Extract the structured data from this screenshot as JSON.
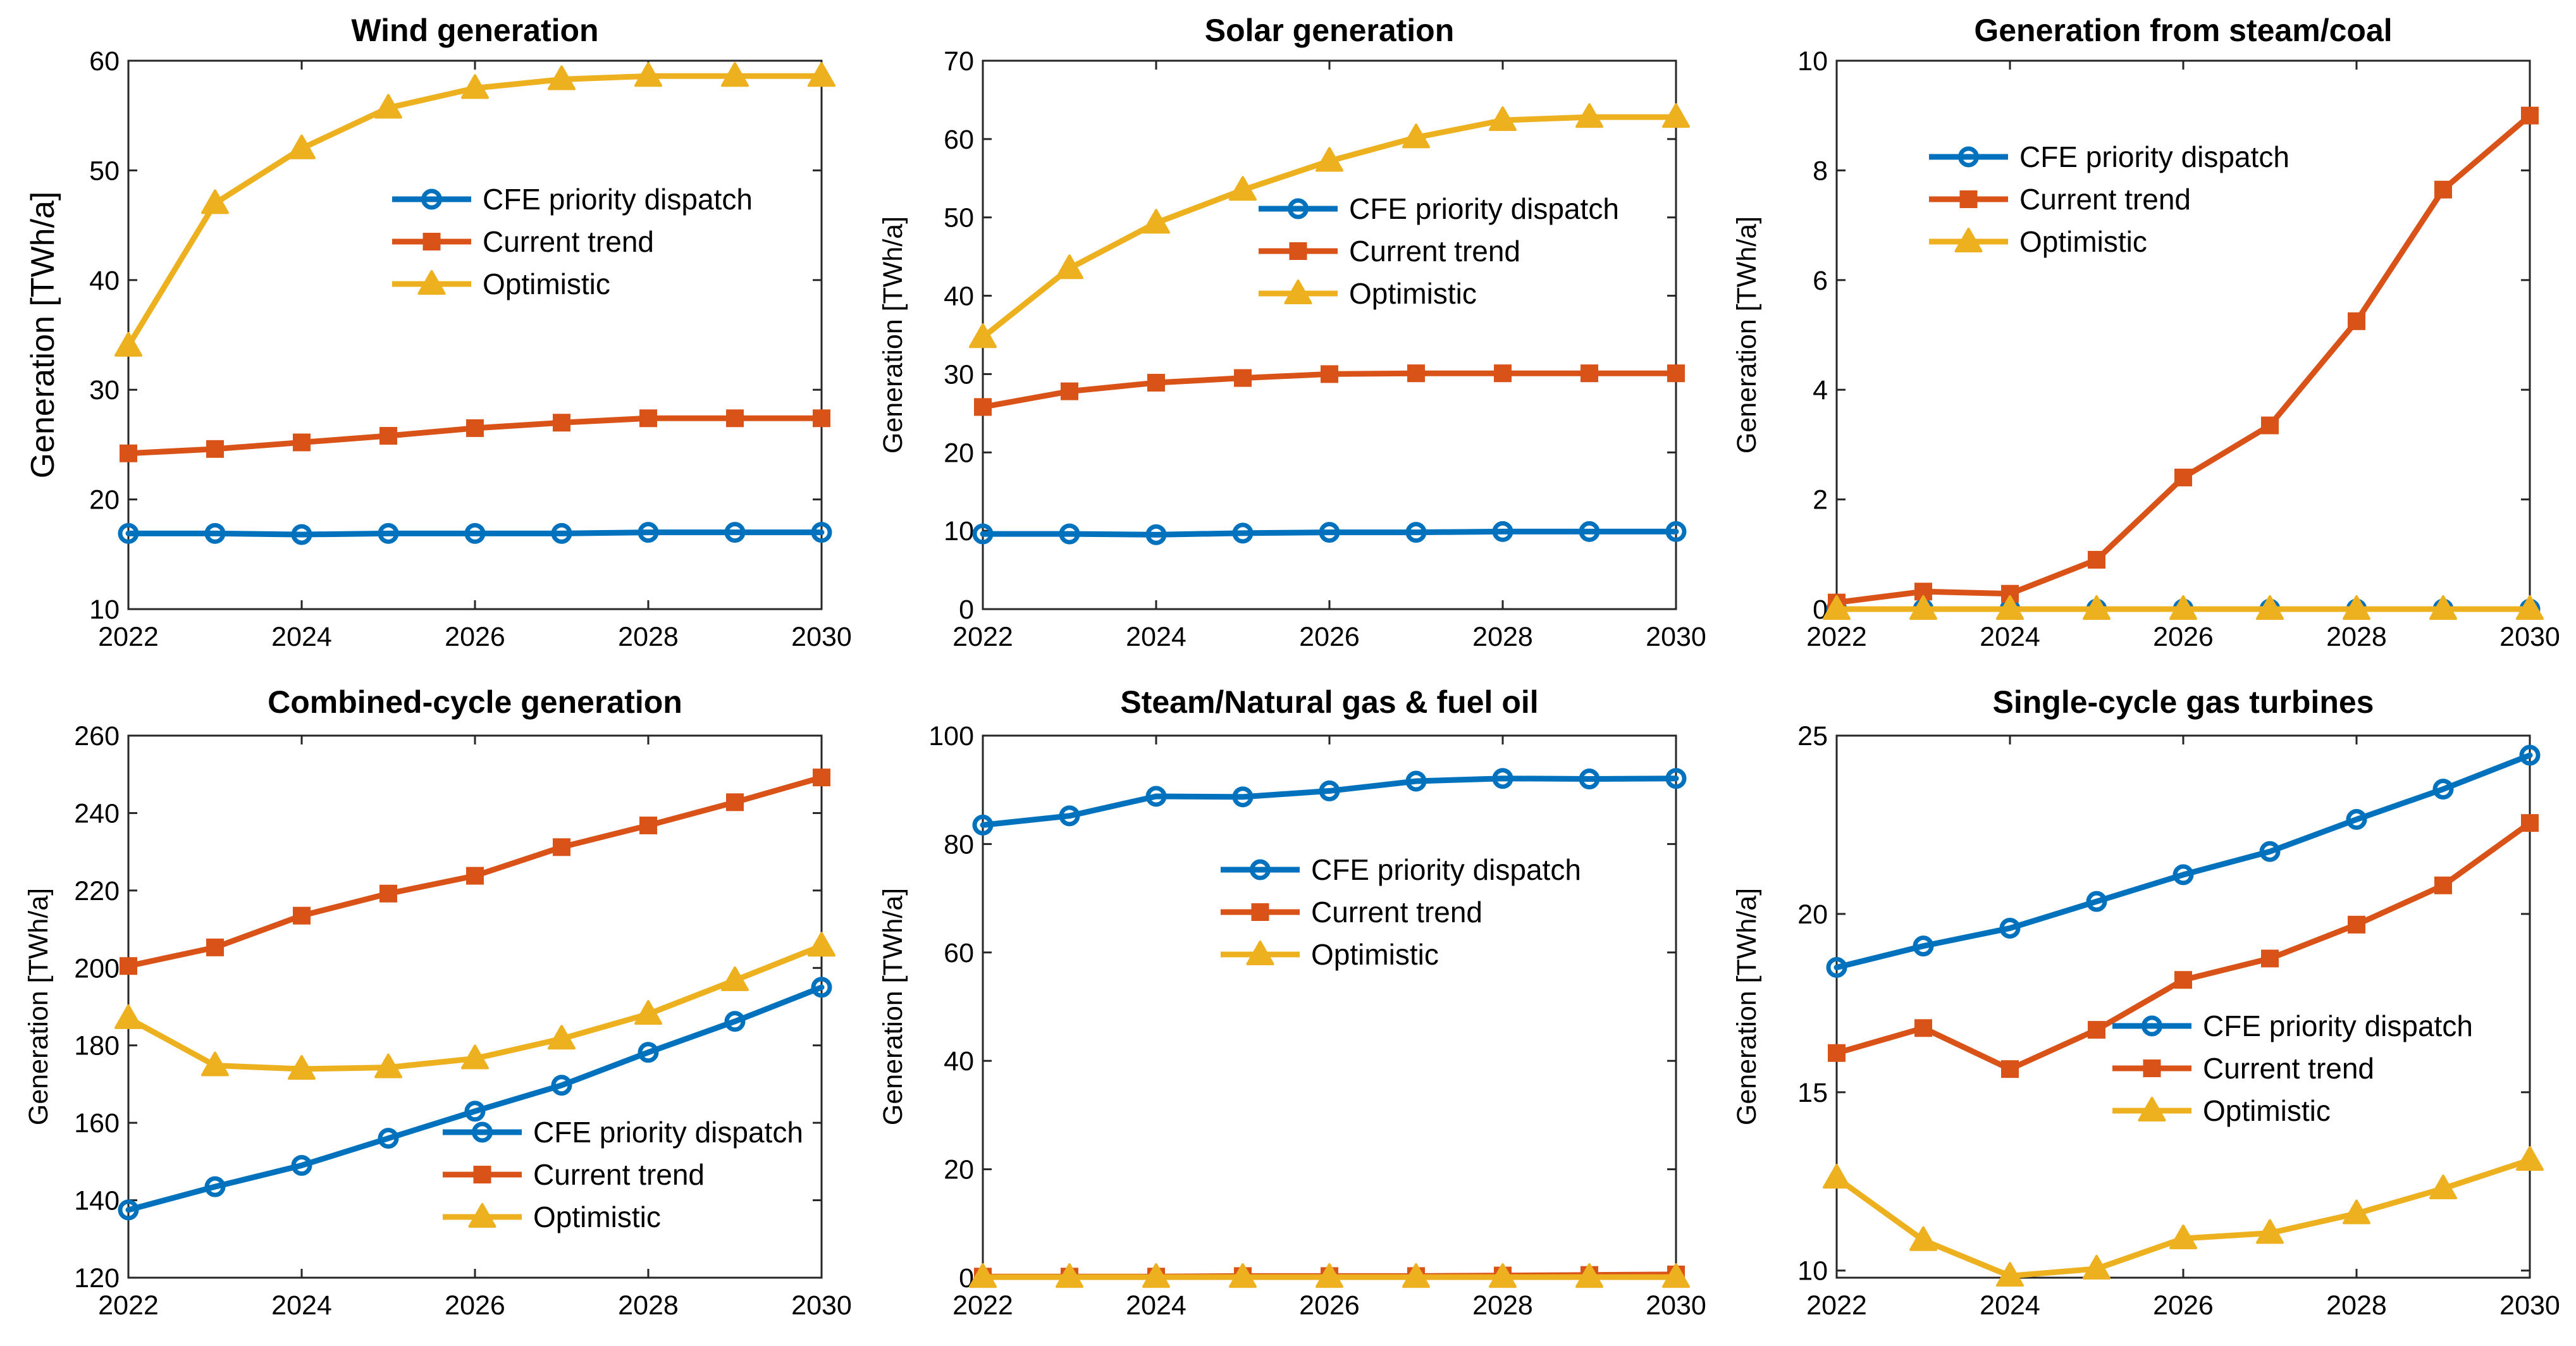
{
  "colors": {
    "cfe": "#0072BD",
    "current": "#D95319",
    "optimistic": "#EDB120"
  },
  "chart_data": [
    {
      "type": "line",
      "title": "Wind generation",
      "xlabel": "",
      "ylabel": "Generation [TWh/a]",
      "x": [
        2022,
        2023,
        2024,
        2025,
        2026,
        2027,
        2028,
        2029,
        2030
      ],
      "xlim": [
        2022,
        2030
      ],
      "xticks": [
        "2022",
        "2024",
        "2026",
        "2028",
        "2030"
      ],
      "ylim": [
        10,
        60
      ],
      "yticks": [
        "10",
        "20",
        "30",
        "40",
        "50",
        "60"
      ],
      "legend_position": "middle-right",
      "series": [
        {
          "name": "CFE priority dispatch",
          "marker": "circle",
          "values": [
            16.9,
            16.9,
            16.8,
            16.9,
            16.9,
            16.9,
            17.0,
            17.0,
            17.0
          ]
        },
        {
          "name": "Current trend",
          "marker": "square",
          "values": [
            24.2,
            24.6,
            25.2,
            25.8,
            26.5,
            27.0,
            27.4,
            27.4,
            27.4
          ]
        },
        {
          "name": "Optimistic",
          "marker": "triangle",
          "values": [
            34.0,
            47.0,
            52.0,
            55.7,
            57.5,
            58.3,
            58.6,
            58.6,
            58.6
          ]
        }
      ]
    },
    {
      "type": "line",
      "title": "Solar generation",
      "xlabel": "",
      "ylabel": "Generation [TWh/a]",
      "x": [
        2022,
        2023,
        2024,
        2025,
        2026,
        2027,
        2028,
        2029,
        2030
      ],
      "xlim": [
        2022,
        2030
      ],
      "xticks": [
        "2022",
        "2024",
        "2026",
        "2028",
        "2030"
      ],
      "ylim": [
        0,
        70
      ],
      "yticks": [
        "0",
        "10",
        "20",
        "30",
        "40",
        "50",
        "60",
        "70"
      ],
      "legend_position": "middle-right",
      "series": [
        {
          "name": "CFE priority dispatch",
          "marker": "circle",
          "values": [
            9.6,
            9.6,
            9.5,
            9.7,
            9.8,
            9.8,
            9.9,
            9.9,
            9.9
          ]
        },
        {
          "name": "Current trend",
          "marker": "square",
          "values": [
            25.8,
            27.8,
            28.9,
            29.5,
            30.0,
            30.1,
            30.1,
            30.1,
            30.1
          ]
        },
        {
          "name": "Optimistic",
          "marker": "triangle",
          "values": [
            34.7,
            43.5,
            49.3,
            53.5,
            57.2,
            60.2,
            62.4,
            62.8,
            62.8
          ]
        }
      ]
    },
    {
      "type": "line",
      "title": "Generation from steam/coal",
      "xlabel": "",
      "ylabel": "Generation [TWh/a]",
      "x": [
        2022,
        2023,
        2024,
        2025,
        2026,
        2027,
        2028,
        2029,
        2030
      ],
      "xlim": [
        2022,
        2030
      ],
      "xticks": [
        "2022",
        "2024",
        "2026",
        "2028",
        "2030"
      ],
      "ylim": [
        0,
        10
      ],
      "yticks": [
        "0",
        "2",
        "4",
        "6",
        "8",
        "10"
      ],
      "legend_position": "top-left",
      "series": [
        {
          "name": "CFE priority dispatch",
          "marker": "circle",
          "values": [
            0,
            0,
            0,
            0,
            0,
            0,
            0,
            0,
            0
          ]
        },
        {
          "name": "Current trend",
          "marker": "square",
          "values": [
            0.12,
            0.32,
            0.28,
            0.9,
            2.4,
            3.35,
            5.25,
            7.65,
            9.0
          ]
        },
        {
          "name": "Optimistic",
          "marker": "triangle",
          "values": [
            0,
            0,
            0,
            0,
            0,
            0,
            0,
            0,
            0
          ]
        }
      ]
    },
    {
      "type": "line",
      "title": "Combined-cycle generation",
      "xlabel": "",
      "ylabel": "Generation [TWh/a]",
      "x": [
        2022,
        2023,
        2024,
        2025,
        2026,
        2027,
        2028,
        2029,
        2030
      ],
      "xlim": [
        2022,
        2030
      ],
      "xticks": [
        "2022",
        "2024",
        "2026",
        "2028",
        "2030"
      ],
      "ylim": [
        120,
        260
      ],
      "yticks": [
        "120",
        "140",
        "160",
        "180",
        "200",
        "220",
        "240",
        "260"
      ],
      "legend_position": "bottom-right",
      "series": [
        {
          "name": "CFE priority dispatch",
          "marker": "circle",
          "values": [
            137.5,
            143.5,
            149,
            156,
            163,
            169.7,
            178.2,
            186.2,
            195
          ]
        },
        {
          "name": "Current trend",
          "marker": "square",
          "values": [
            200.5,
            205.3,
            213.5,
            219.2,
            223.8,
            231.2,
            236.8,
            242.8,
            249.2
          ]
        },
        {
          "name": "Optimistic",
          "marker": "triangle",
          "values": [
            187,
            174.8,
            173.9,
            174.3,
            176.6,
            181.7,
            188.1,
            196.8,
            205.7
          ]
        }
      ]
    },
    {
      "type": "line",
      "title": "Steam/Natural gas & fuel oil",
      "xlabel": "",
      "ylabel": "Generation [TWh/a]",
      "x": [
        2022,
        2023,
        2024,
        2025,
        2026,
        2027,
        2028,
        2029,
        2030
      ],
      "xlim": [
        2022,
        2030
      ],
      "xticks": [
        "2022",
        "2024",
        "2026",
        "2028",
        "2030"
      ],
      "ylim": [
        0,
        100
      ],
      "yticks": [
        "0",
        "20",
        "40",
        "60",
        "80",
        "100"
      ],
      "legend_position": "middle-right",
      "series": [
        {
          "name": "CFE priority dispatch",
          "marker": "circle",
          "values": [
            83.5,
            85.2,
            88.8,
            88.7,
            89.8,
            91.6,
            92.1,
            92.0,
            92.1
          ]
        },
        {
          "name": "Current trend",
          "marker": "square",
          "values": [
            0.2,
            0.2,
            0.2,
            0.3,
            0.3,
            0.3,
            0.4,
            0.5,
            0.6
          ]
        },
        {
          "name": "Optimistic",
          "marker": "triangle",
          "values": [
            0.1,
            0.1,
            0.1,
            0.1,
            0.1,
            0.1,
            0.1,
            0.1,
            0.1
          ]
        }
      ]
    },
    {
      "type": "line",
      "title": "Single-cycle gas turbines",
      "xlabel": "",
      "ylabel": "Generation [TWh/a]",
      "x": [
        2022,
        2023,
        2024,
        2025,
        2026,
        2027,
        2028,
        2029,
        2030
      ],
      "xlim": [
        2022,
        2030
      ],
      "xticks": [
        "2022",
        "2024",
        "2026",
        "2028",
        "2030"
      ],
      "ylim": [
        9.8,
        25
      ],
      "yticks": [
        "10",
        "15",
        "20",
        "25"
      ],
      "ytick_values": [
        10,
        15,
        20,
        25
      ],
      "legend_position": "bottom-right",
      "series": [
        {
          "name": "CFE priority dispatch",
          "marker": "circle",
          "values": [
            18.5,
            19.1,
            19.6,
            20.35,
            21.1,
            21.75,
            22.65,
            23.5,
            24.45
          ]
        },
        {
          "name": "Current trend",
          "marker": "square",
          "values": [
            16.1,
            16.8,
            15.65,
            16.75,
            18.15,
            18.75,
            19.7,
            20.8,
            22.55
          ]
        },
        {
          "name": "Optimistic",
          "marker": "triangle",
          "values": [
            12.6,
            10.85,
            9.85,
            10.05,
            10.9,
            11.05,
            11.6,
            12.3,
            13.1
          ]
        }
      ]
    }
  ]
}
